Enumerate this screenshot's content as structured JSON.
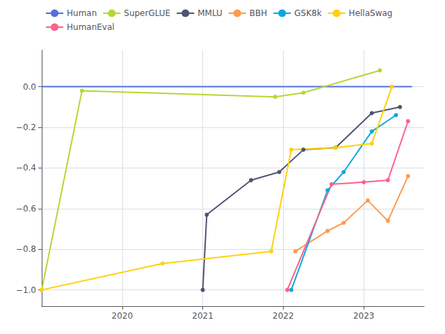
{
  "chart_data": {
    "type": "line",
    "series": [
      {
        "name": "Human",
        "marker": "none",
        "x": [
          2019.0,
          2023.6
        ],
        "values": [
          0.0,
          0.0
        ]
      },
      {
        "name": "SuperGLUE",
        "marker": "circle",
        "x": [
          2019.0,
          2019.5,
          2021.9,
          2022.25,
          2023.2
        ],
        "values": [
          -1.0,
          -0.02,
          -0.05,
          -0.03,
          0.08
        ]
      },
      {
        "name": "MMLU",
        "marker": "circle",
        "x": [
          2021.0,
          2021.05,
          2021.6,
          2021.95,
          2022.25,
          2022.65,
          2023.1,
          2023.45
        ],
        "values": [
          -1.0,
          -0.63,
          -0.46,
          -0.42,
          -0.31,
          -0.3,
          -0.13,
          -0.1
        ]
      },
      {
        "name": "BBH",
        "marker": "circle",
        "x": [
          2022.15,
          2022.55,
          2022.75,
          2023.05,
          2023.3,
          2023.55
        ],
        "values": [
          -0.81,
          -0.71,
          -0.67,
          -0.56,
          -0.66,
          -0.44
        ]
      },
      {
        "name": "GSK8k",
        "marker": "circle",
        "x": [
          2022.1,
          2022.55,
          2022.75,
          2023.1,
          2023.4
        ],
        "values": [
          -1.0,
          -0.51,
          -0.42,
          -0.22,
          -0.14
        ]
      },
      {
        "name": "HellaSwag",
        "marker": "circle",
        "x": [
          2019.0,
          2020.5,
          2021.85,
          2022.1,
          2022.65,
          2023.1,
          2023.35
        ],
        "values": [
          -1.0,
          -0.87,
          -0.81,
          -0.31,
          -0.3,
          -0.28,
          0.0
        ]
      },
      {
        "name": "HumanEval",
        "marker": "circle",
        "x": [
          2022.05,
          2022.6,
          2023.0,
          2023.3,
          2023.55
        ],
        "values": [
          -1.0,
          -0.48,
          -0.47,
          -0.46,
          -0.17
        ]
      }
    ],
    "xlim": [
      2019.0,
      2023.75
    ],
    "ylim": [
      -1.08,
      0.18
    ],
    "xticks": [
      2020,
      2021,
      2022,
      2023
    ],
    "yticks": [
      {
        "value": 0.0,
        "label": "0.0"
      },
      {
        "value": -0.2,
        "label": "−0.2"
      },
      {
        "value": -0.4,
        "label": "−0.4"
      },
      {
        "value": -0.6,
        "label": "−0.6"
      },
      {
        "value": -0.8,
        "label": "−0.8"
      },
      {
        "value": -1.0,
        "label": "−1.0"
      }
    ],
    "grid": true,
    "legend": "upper left"
  }
}
